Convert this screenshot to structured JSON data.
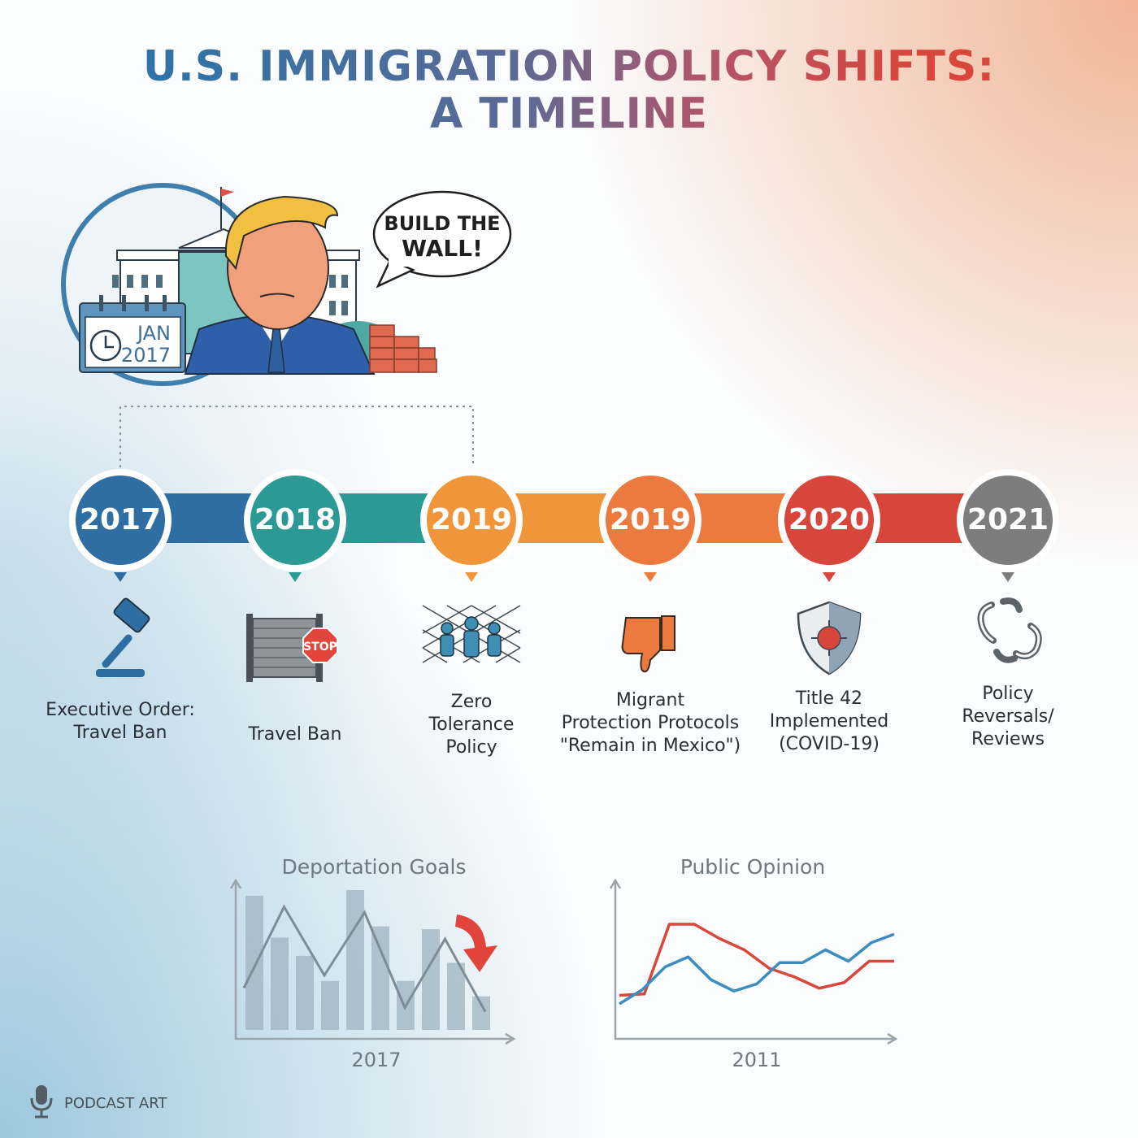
{
  "title": {
    "line1": "U.S. IMMIGRATION POLICY SHIFTS:",
    "line2": "A TIMELINE"
  },
  "illustration": {
    "speech_bubble": {
      "line1": "BUILD THE",
      "line2": "WALL!"
    },
    "calendar": {
      "month": "JAN",
      "year": "2017"
    }
  },
  "timeline": {
    "events": [
      {
        "year": "2017",
        "label_lines": [
          "Executive Order:",
          "Travel Ban"
        ],
        "icon": "gavel-icon",
        "color": "#2f6ea3"
      },
      {
        "year": "2018",
        "label_lines": [
          "Travel Ban"
        ],
        "icon": "wall-stop-sign-icon",
        "color": "#2b9a94"
      },
      {
        "year": "2019",
        "label_lines": [
          "Zero",
          "Tolerance",
          "Policy"
        ],
        "icon": "fence-family-icon",
        "color": "#f1953a"
      },
      {
        "year": "2019",
        "label_lines": [
          "Migrant",
          "Protection Protocols",
          "\"Remain in Mexico\")"
        ],
        "icon": "thumbs-down-icon",
        "color": "#ec7a3e"
      },
      {
        "year": "2020",
        "label_lines": [
          "Title 42",
          "Implemented",
          "(COVID-19)"
        ],
        "icon": "shield-virus-icon",
        "color": "#d8453a"
      },
      {
        "year": "2021",
        "label_lines": [
          "Policy",
          "Reversals/",
          "Reviews"
        ],
        "icon": "broken-chain-icon",
        "color": "#7d7d7d"
      }
    ]
  },
  "chart_data": [
    {
      "type": "bar",
      "title": "Deportation Goals",
      "xlabel": "2017",
      "ylabel": "",
      "values": [
        96,
        66,
        53,
        35,
        100,
        74,
        35,
        72,
        48,
        24
      ],
      "overlay_line": [
        30,
        88,
        39,
        84,
        16,
        65,
        13
      ],
      "annotation": "red-down-arrow",
      "colors": {
        "bars": "#9fb3bf",
        "line": "#7d8c96",
        "arrow": "#e0443a"
      }
    },
    {
      "type": "line",
      "title": "Public Opinion",
      "xlabel": "2011",
      "ylabel": "",
      "series": [
        {
          "color": "#d9463b",
          "values": [
            26,
            27,
            76,
            76,
            66,
            58,
            45,
            39,
            31,
            35,
            50,
            50
          ]
        },
        {
          "color": "#3b8cc0",
          "values": [
            20,
            30,
            46,
            53,
            37,
            29,
            34,
            49,
            49,
            58,
            50,
            63,
            69
          ]
        }
      ]
    }
  ],
  "footer": {
    "label": "PODCAST ART",
    "icon": "microphone-icon"
  }
}
